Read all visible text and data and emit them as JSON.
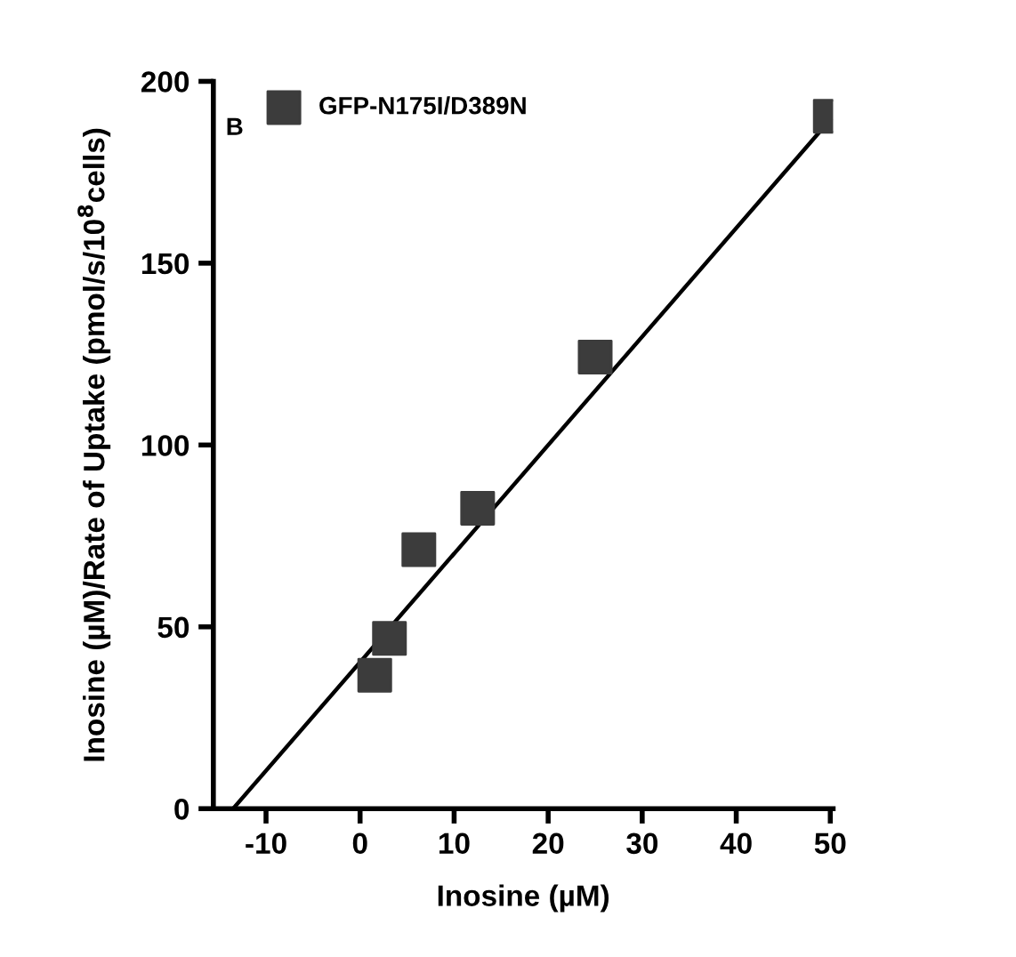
{
  "chart_data": {
    "type": "scatter",
    "xlabel": "Inosine (µM)",
    "ylabel": "Inosine (µM)/Rate of Uptake (pmol/s/10$^{8}$cells)",
    "annotations": [
      "B"
    ],
    "x": [
      1.56,
      3.125,
      6.25,
      12.5,
      25,
      50
    ],
    "series": [
      {
        "name": "GFP-N175I/D389N",
        "color": "#3c3c3c",
        "values": [
          36.7,
          46.8,
          71.2,
          82.6,
          124.2,
          190.4
        ],
        "marker": "square"
      },
      {
        "type": "line",
        "color": "#000000",
        "x": [
          -13.5,
          50
        ],
        "values": [
          0,
          189.5
        ],
        "line_style": "solid"
      }
    ],
    "xlim": [
      -15.6,
      50.3
    ],
    "ylim": [
      0,
      200
    ],
    "xticks": [
      -10,
      0,
      10,
      20,
      30,
      40,
      50
    ],
    "yticks": [
      0,
      50,
      100,
      150,
      200
    ],
    "grid": false,
    "legend": "top left"
  }
}
